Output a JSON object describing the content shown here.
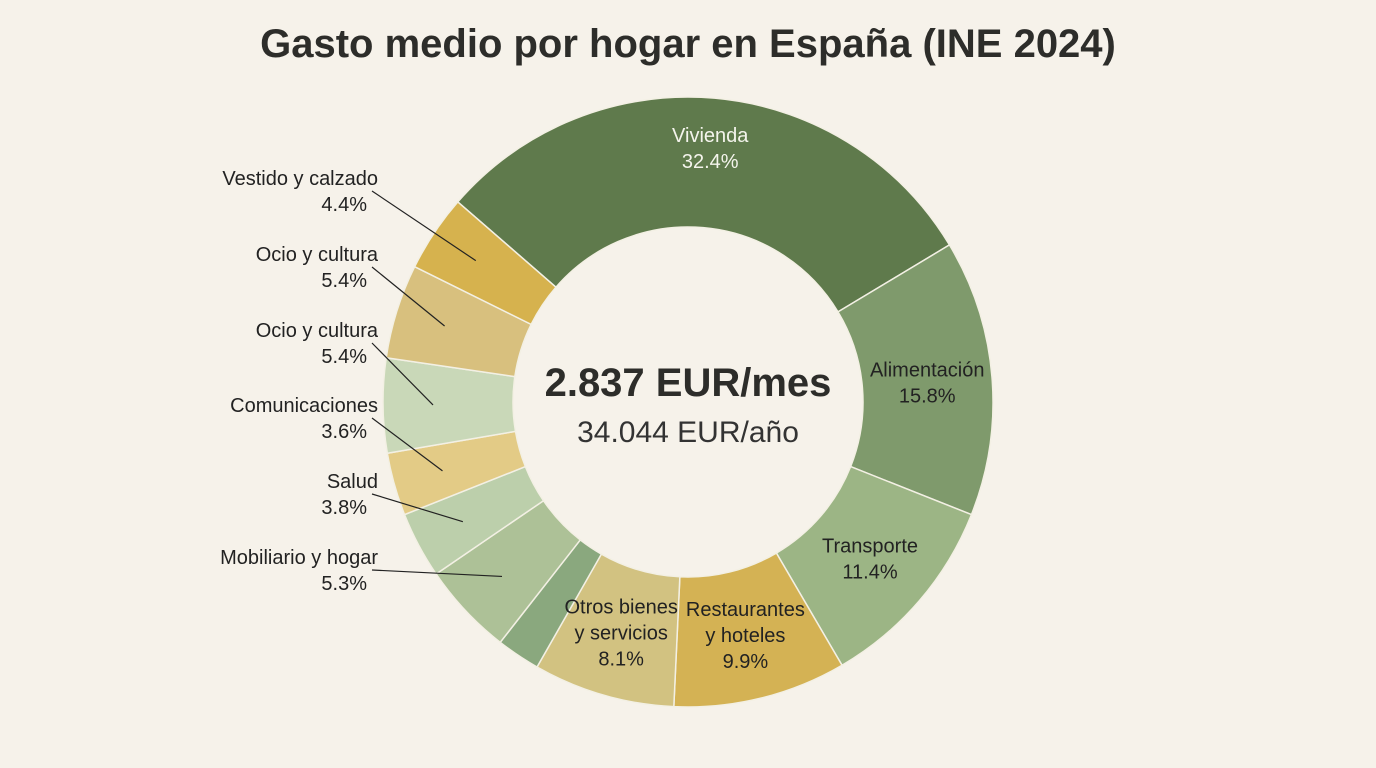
{
  "chart_data": {
    "type": "pie",
    "donut": true,
    "title": "Gasto medio por hogar en España (INE 2024)",
    "center_text": {
      "main": "2.837 EUR/mes",
      "sub": "34.044 EUR/año"
    },
    "slices": [
      {
        "label": "Vivienda",
        "value": 32.4,
        "value_label": "32.4%",
        "color": "#5f7a4c",
        "placement": "inside"
      },
      {
        "label": "Alimentación",
        "value": 15.8,
        "value_label": "15.8%",
        "color": "#7f9a6c",
        "placement": "inside"
      },
      {
        "label": "Transporte",
        "value": 11.4,
        "value_label": "11.4%",
        "color": "#9cb585",
        "placement": "inside"
      },
      {
        "label": "Restaurantes\ny hoteles",
        "value": 9.9,
        "value_label": "9.9%",
        "color": "#d4b254",
        "placement": "inside"
      },
      {
        "label": "Otros bienes\ny servicios",
        "value": 8.1,
        "value_label": "8.1%",
        "color": "#d2c281",
        "placement": "inside"
      },
      {
        "label": "",
        "value": 2.5,
        "value_label": "",
        "color": "#8aa87e",
        "placement": "none"
      },
      {
        "label": "Mobiliario y hogar",
        "value": 5.3,
        "value_label": "5.3%",
        "color": "#adc197",
        "placement": "outside"
      },
      {
        "label": "Salud",
        "value": 3.8,
        "value_label": "3.8%",
        "color": "#bccfab",
        "placement": "outside"
      },
      {
        "label": "Comunicaciones",
        "value": 3.6,
        "value_label": "3.6%",
        "color": "#e3cb86",
        "placement": "outside"
      },
      {
        "label": "Ocio y cultura",
        "value": 5.4,
        "value_label": "5.4%",
        "color": "#c9d8b8",
        "placement": "outside"
      },
      {
        "label": "Ocio y cultura",
        "value": 5.4,
        "value_label": "5.4%",
        "color": "#d8c07e",
        "placement": "outside"
      },
      {
        "label": "Vestido y calzado",
        "value": 4.4,
        "value_label": "4.4%",
        "color": "#d6b24e",
        "placement": "outside"
      }
    ]
  }
}
